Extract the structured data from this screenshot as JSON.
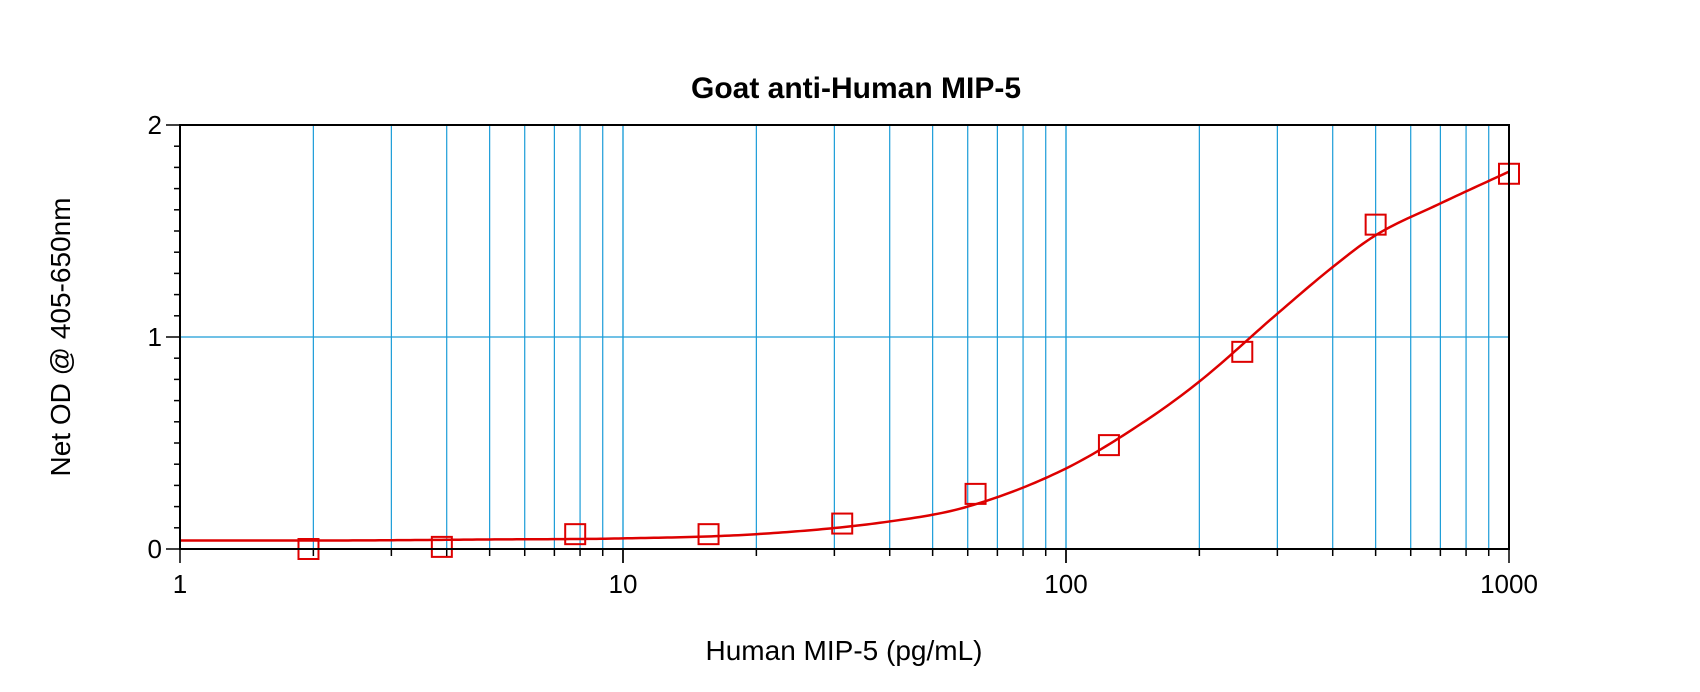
{
  "chart_data": {
    "type": "scatter",
    "title": "Goat anti-Human MIP-5",
    "xlabel": "Human MIP-5 (pg/mL)",
    "ylabel": "Net OD @ 405-650nm",
    "x_scale": "log",
    "xlim": [
      1,
      1000
    ],
    "ylim": [
      0,
      2
    ],
    "x_tick_labels": [
      "1",
      "10",
      "100",
      "1000"
    ],
    "y_tick_labels": [
      "0",
      "1",
      "2"
    ],
    "grid": true,
    "colors": {
      "series": "#dd0000",
      "grid": "#1a9cd8",
      "frame": "#000000"
    },
    "series": [
      {
        "marker": "square",
        "x": [
          1.95,
          3.9,
          7.8,
          15.6,
          31.25,
          62.5,
          125,
          250,
          500,
          1000
        ],
        "y": [
          0.0,
          0.01,
          0.07,
          0.07,
          0.12,
          0.26,
          0.49,
          0.93,
          1.53,
          1.77
        ]
      }
    ],
    "fit_curve": {
      "type": "4PL",
      "points_x": [
        1,
        2,
        5,
        10,
        20,
        40,
        60,
        100,
        150,
        200,
        300,
        400,
        500,
        700,
        1000
      ],
      "points_y": [
        0.04,
        0.04,
        0.045,
        0.05,
        0.07,
        0.13,
        0.2,
        0.38,
        0.6,
        0.79,
        1.11,
        1.33,
        1.48,
        1.63,
        1.78
      ]
    }
  }
}
